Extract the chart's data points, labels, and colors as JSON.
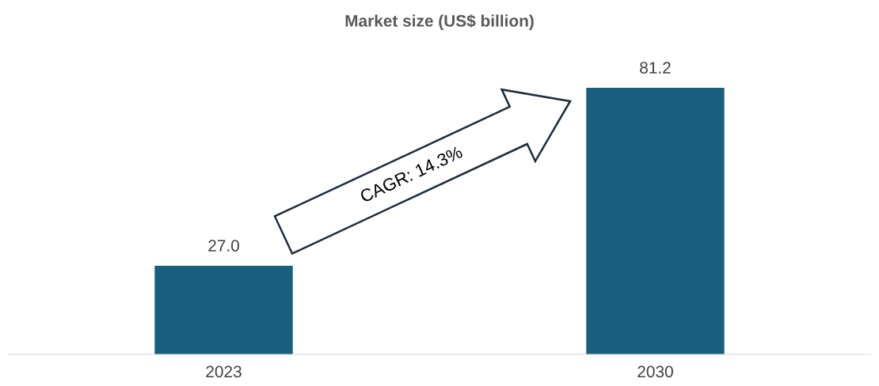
{
  "chart_data": {
    "type": "bar",
    "title": "Market size (US$ billion)",
    "categories": [
      "2023",
      "2030"
    ],
    "values": [
      27.0,
      81.2
    ],
    "color": "#175e7f",
    "value_labels": [
      "27.0",
      "81.2"
    ],
    "grid": false,
    "legend": false,
    "annotations": [
      "CAGR: 14.3%"
    ]
  }
}
